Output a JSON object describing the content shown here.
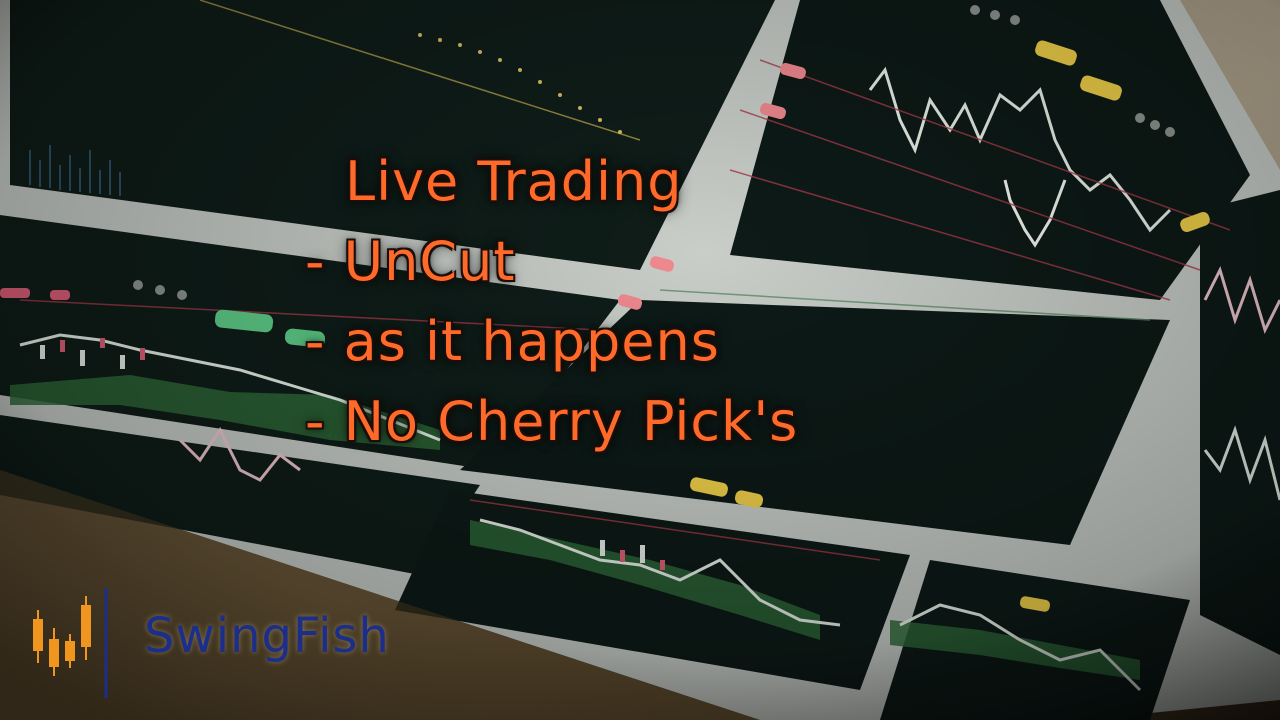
{
  "headline": {
    "line1": "Live Trading",
    "line2": "- UnCut",
    "line3": "- as it happens",
    "line4": "- No Cherry Pick's"
  },
  "brand": {
    "name": "SwingFish"
  },
  "colors": {
    "headline_text": "#ff6a2b",
    "headline_outline": "#1a0e08",
    "brand_text": "#1b2e8a",
    "brand_candles": "#f0961e",
    "brand_divider": "#1b2e8a",
    "screen_background": "#0d1a17",
    "screen_bezel": "#c8ccc8",
    "candle_bull": "#e8f0e8",
    "candle_bear": "#e0607a",
    "cloud_green": "#2f6b3a",
    "button_green": "#5fd08a",
    "button_yellow": "#f2d24a",
    "button_pink": "#f08a90"
  },
  "icons": [
    "candlestick-logo-icon"
  ]
}
